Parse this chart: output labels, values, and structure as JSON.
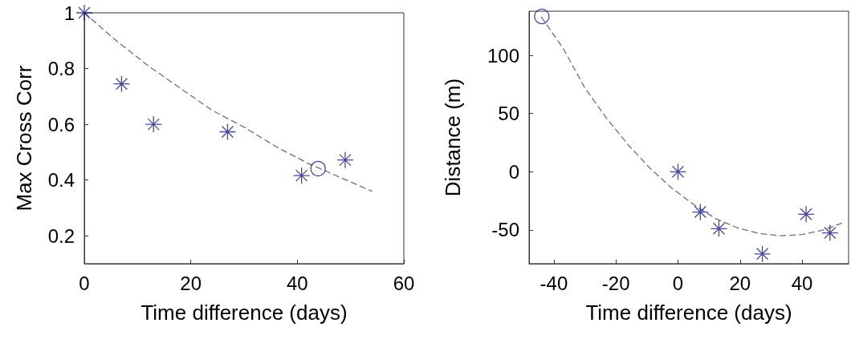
{
  "chart_data": [
    {
      "type": "scatter",
      "xlabel": "Time difference (days)",
      "ylabel": "Max Cross Corr",
      "xlim": [
        0,
        60
      ],
      "xticks": [
        0,
        20,
        40,
        60
      ],
      "ylim": [
        0.1,
        1
      ],
      "yticks": [
        0.2,
        0.4,
        0.6,
        0.8,
        1
      ],
      "series": [
        {
          "type": "line",
          "marker": "none",
          "line_style": "dashed",
          "color": "#6a6a90",
          "x": [
            0,
            6,
            12,
            18,
            24,
            30,
            36,
            42,
            48,
            54
          ],
          "values": [
            1,
            0.9,
            0.81,
            0.73,
            0.65,
            0.59,
            0.52,
            0.46,
            0.41,
            0.36
          ]
        },
        {
          "type": "scatter",
          "marker": "cross",
          "color": "#1a1a80",
          "x": [
            0,
            7,
            13,
            26.9,
            40.8,
            49
          ],
          "values": [
            1,
            0.745,
            0.6,
            0.573,
            0.416,
            0.472
          ]
        },
        {
          "type": "scatter",
          "marker": "circle",
          "color": "#1a1a80",
          "x": [
            43.9
          ],
          "values": [
            0.441
          ]
        }
      ]
    },
    {
      "type": "scatter",
      "xlabel": "Time difference (days)",
      "ylabel": "Distance (m)",
      "xlim": [
        -48,
        55
      ],
      "xticks": [
        -40,
        -20,
        0,
        20,
        40
      ],
      "ylim": [
        -79,
        138
      ],
      "yticks": [
        -50,
        0,
        50,
        100
      ],
      "series": [
        {
          "type": "line",
          "marker": "none",
          "line_style": "dashed",
          "color": "#6a6a90",
          "x": [
            -44,
            -37,
            -30,
            -23,
            -16,
            -9,
            -2,
            5,
            12,
            19,
            26,
            33,
            40,
            47,
            54
          ],
          "values": [
            133,
            106,
            72,
            46,
            23,
            3,
            -14,
            -28,
            -40,
            -48,
            -53,
            -55,
            -54,
            -50,
            -43
          ]
        },
        {
          "type": "scatter",
          "marker": "cross",
          "color": "#1a1a80",
          "x": [
            0,
            7.2,
            13.2,
            27.2,
            41.3,
            49
          ],
          "values": [
            0,
            -34.6,
            -48.9,
            -70.6,
            -36.5,
            -52.5
          ]
        },
        {
          "type": "scatter",
          "marker": "circle",
          "color": "#1a1a80",
          "x": [
            -43.9
          ],
          "values": [
            133.5
          ]
        }
      ]
    }
  ]
}
